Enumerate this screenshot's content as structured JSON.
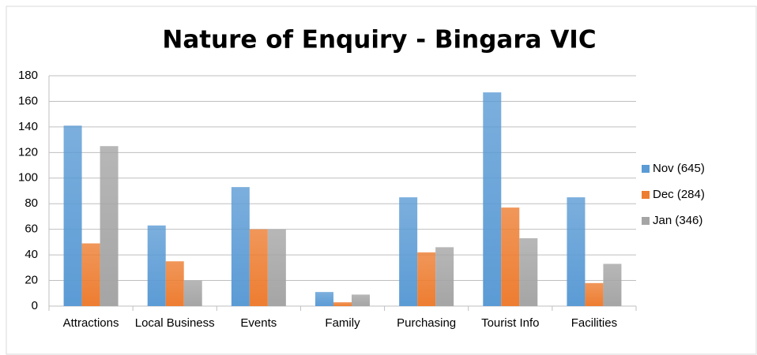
{
  "chart_data": {
    "type": "bar",
    "title": "Nature of Enquiry - Bingara VIC",
    "categories": [
      "Attractions",
      "Local Business",
      "Events",
      "Family",
      "Purchasing",
      "Tourist Info",
      "Facilities"
    ],
    "series": [
      {
        "name": "Nov (645)",
        "color": "#5b9bd5",
        "values": [
          141,
          63,
          93,
          11,
          85,
          167,
          85
        ]
      },
      {
        "name": "Dec (284)",
        "color": "#ed7d31",
        "values": [
          49,
          35,
          60,
          3,
          42,
          77,
          18
        ]
      },
      {
        "name": "Jan (346)",
        "color": "#a5a5a5",
        "values": [
          125,
          20,
          60,
          9,
          46,
          53,
          33
        ]
      }
    ],
    "ylim": [
      0,
      180
    ],
    "yticks": [
      0,
      20,
      40,
      60,
      80,
      100,
      120,
      140,
      160,
      180
    ],
    "grid": true,
    "legend": "right"
  }
}
